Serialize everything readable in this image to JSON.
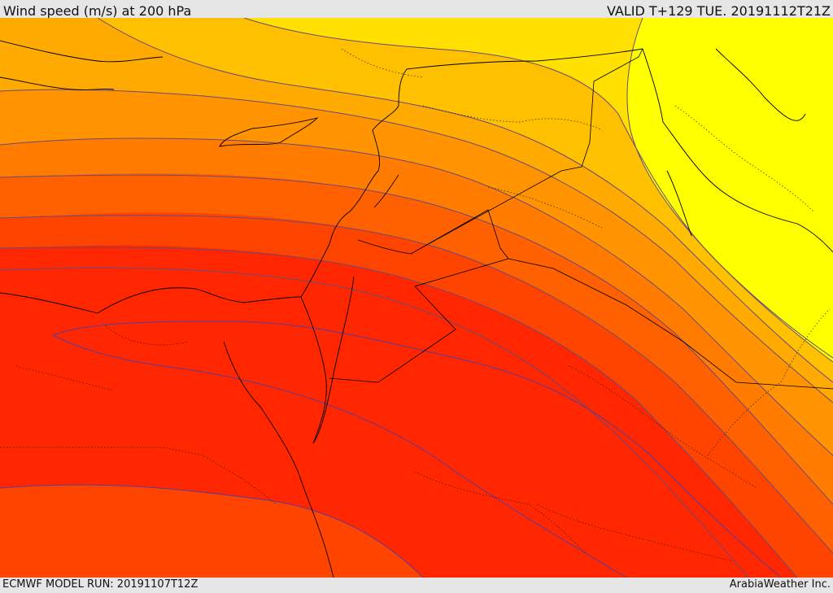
{
  "header": {
    "title": "Wind speed (m/s) at 200 hPa",
    "valid": "VALID T+129 TUE. 20191112T21Z"
  },
  "footer": {
    "model_run": "ECMWF MODEL RUN: 20191107T12Z",
    "brand": "ArabiaWeather Inc."
  },
  "colors": {
    "band_1": "#ffff00",
    "band_2": "#ffe000",
    "band_3": "#ffc000",
    "band_4": "#ffaa00",
    "band_5": "#ff9300",
    "band_6": "#ff7c00",
    "band_7": "#ff6000",
    "band_8": "#ff4400",
    "band_9": "#ff2600",
    "band_10": "#ff0000",
    "contour": "#6a4a7a",
    "border": "#000000"
  }
}
